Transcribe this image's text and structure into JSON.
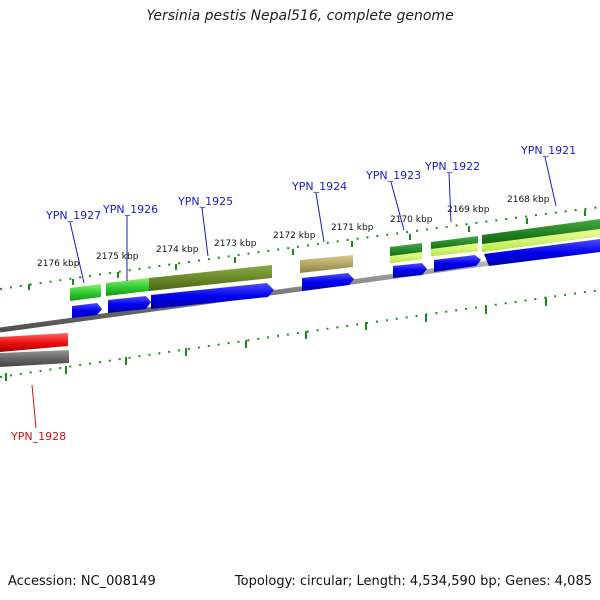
{
  "title": "Yersinia pestis Nepal516, complete genome",
  "footer": {
    "accession": "Accession: NC_008149",
    "topology": "Topology: circular; Length: 4,534,590 bp; Genes: 4,085"
  },
  "colors": {
    "cds": "#0000ee",
    "backbone": "#808080",
    "tick": "#1a8a1a",
    "gene_label": "#1a1acc",
    "highlight_label": "#cc1111",
    "highlight_gene": "#ee1111"
  },
  "scale_labels": [
    "2176 kbp",
    "2175 kbp",
    "2174 kbp",
    "2173 kbp",
    "2172 kbp",
    "2171 kbp",
    "2170 kbp",
    "2169 kbp",
    "2168 kbp"
  ],
  "gene_labels": [
    {
      "id": "YPN_1927",
      "color": "blue"
    },
    {
      "id": "YPN_1926",
      "color": "blue"
    },
    {
      "id": "YPN_1925",
      "color": "blue"
    },
    {
      "id": "YPN_1924",
      "color": "blue"
    },
    {
      "id": "YPN_1923",
      "color": "blue"
    },
    {
      "id": "YPN_1922",
      "color": "blue"
    },
    {
      "id": "YPN_1921",
      "color": "blue"
    },
    {
      "id": "YPN_1928",
      "color": "red"
    }
  ]
}
